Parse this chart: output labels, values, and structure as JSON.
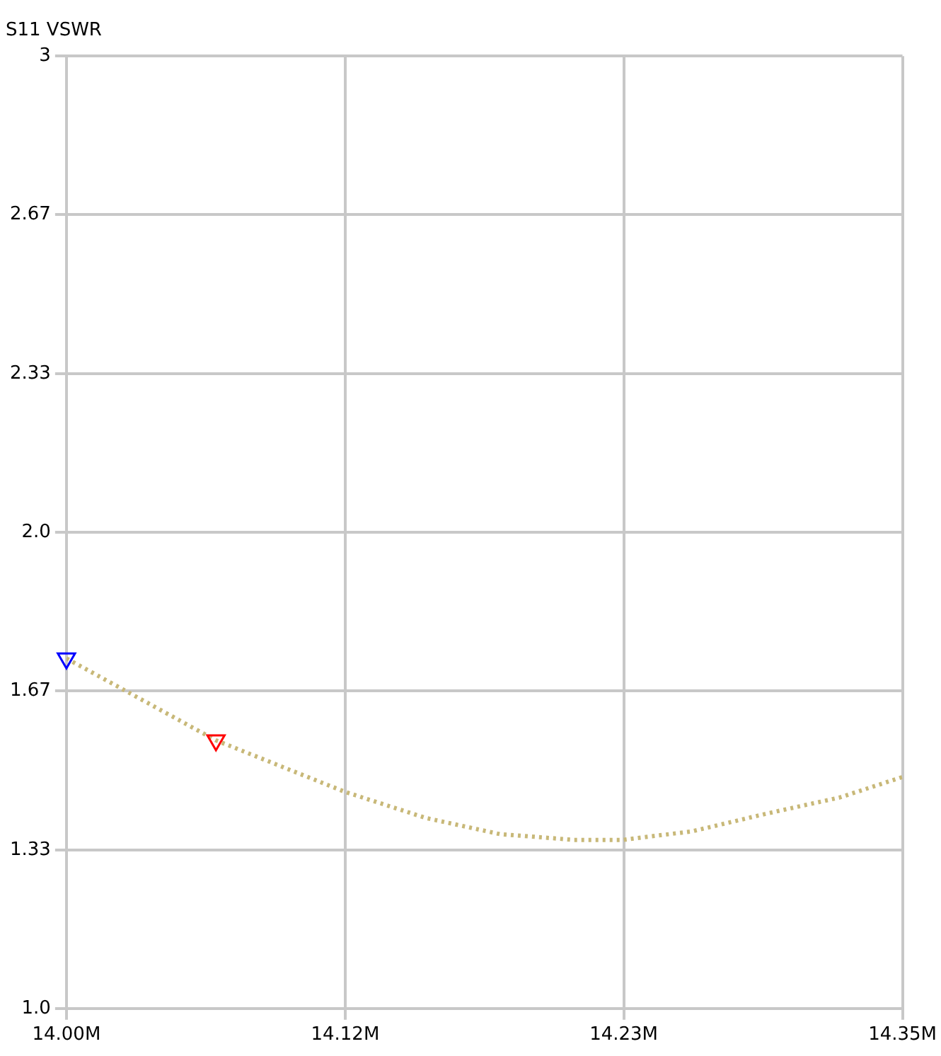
{
  "chart_data": {
    "type": "line",
    "title": "S11 VSWR",
    "xlim": [
      14.0,
      14.35
    ],
    "xticks": [
      {
        "value": 14.0,
        "label": "14.00M"
      },
      {
        "value": 14.1167,
        "label": "14.12M"
      },
      {
        "value": 14.2333,
        "label": "14.23M"
      },
      {
        "value": 14.35,
        "label": "14.35M"
      }
    ],
    "ylim": [
      1.0,
      3
    ],
    "yticks": [
      {
        "value": 1.0,
        "label": "1.0"
      },
      {
        "value": 1.333,
        "label": "1.33"
      },
      {
        "value": 1.667,
        "label": "1.67"
      },
      {
        "value": 2.0,
        "label": "2.0"
      },
      {
        "value": 2.333,
        "label": "2.33"
      },
      {
        "value": 2.667,
        "label": "2.67"
      },
      {
        "value": 3,
        "label": "3"
      }
    ],
    "grid": true,
    "legend": false,
    "series": [
      {
        "color": "#c8b878",
        "marker": "none",
        "line_style": "dotted",
        "x": [
          14.0,
          14.0626,
          14.1165,
          14.1505,
          14.1815,
          14.2125,
          14.2329,
          14.262,
          14.293,
          14.3237,
          14.35
        ],
        "values": [
          1.735,
          1.563,
          1.455,
          1.4,
          1.366,
          1.354,
          1.354,
          1.372,
          1.409,
          1.443,
          1.486
        ]
      },
      {
        "type": "scatter",
        "marker": "triangle",
        "colors": [
          "#0000ff",
          "#ff0000"
        ],
        "x": [
          14.0,
          14.0626
        ],
        "values": [
          1.735,
          1.563
        ]
      }
    ]
  }
}
